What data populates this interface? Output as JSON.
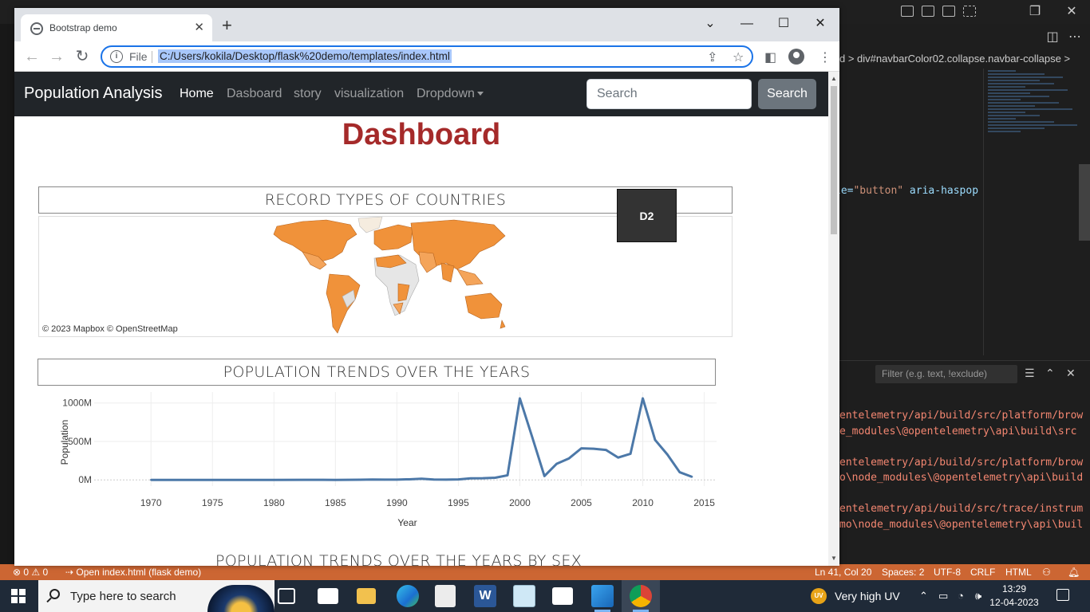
{
  "vscode": {
    "breadcrumb": "d > div#navbarColor02.collapse.navbar-collapse >",
    "code_line": {
      "pre": "le=",
      "value": "\"button\"",
      "post": " aria-haspop"
    },
    "filter_placeholder": "Filter (e.g. text, !exclude)",
    "terminal_lines": [
      "entelemetry/api/build/src/platform/brow",
      "e_modules\\@opentelemetry\\api\\build\\src",
      "",
      "entelemetry/api/build/src/platform/brow",
      "o\\node_modules\\@opentelemetry\\api\\build",
      "",
      "entelemetry/api/build/src/trace/instrum",
      "mo\\node_modules\\@opentelemetry\\api\\buil"
    ],
    "status": {
      "problems": "⊗ 0 ⚠ 0",
      "open_file": "Open index.html (flask demo)",
      "position": "Ln 41, Col 20",
      "spaces": "Spaces: 2",
      "encoding": "UTF-8",
      "eol": "CRLF",
      "language": "HTML"
    }
  },
  "browser": {
    "tab_title": "Bootstrap demo",
    "scheme": "File",
    "url": "C:/Users/kokila/Desktop/flask%20demo/templates/index.html"
  },
  "page": {
    "brand": "Population Analysis",
    "nav": [
      "Home",
      "Dasboard",
      "story",
      "visualization",
      "Dropdown"
    ],
    "search_placeholder": "Search",
    "search_button": "Search",
    "title": "Dashboard",
    "map_title": "RECORD TYPES OF COUNTRIES",
    "map_credit": "© 2023 Mapbox  © OpenStreetMap",
    "d2_label": "D2",
    "trend_title": "POPULATION TRENDS OVER THE YEARS",
    "sex_title": "POPULATION TRENDS OVER THE YEARS BY SEX"
  },
  "chart_data": {
    "type": "line",
    "title": "POPULATION TRENDS OVER THE YEARS",
    "xlabel": "Year",
    "ylabel": "Population",
    "xlim": [
      1967,
      2016
    ],
    "ylim": [
      -60,
      1080
    ],
    "xticks": [
      1970,
      1975,
      1980,
      1985,
      1990,
      1995,
      2000,
      2005,
      2010,
      2015
    ],
    "yticks": [
      {
        "value": 0,
        "label": "0M"
      },
      {
        "value": 500,
        "label": "500M"
      },
      {
        "value": 1000,
        "label": "1000M"
      }
    ],
    "color": "#4c78a8",
    "x": [
      1970,
      1975,
      1980,
      1984,
      1985,
      1986,
      1987,
      1988,
      1989,
      1990,
      1991,
      1992,
      1993,
      1994,
      1995,
      1996,
      1997,
      1998,
      1999,
      2000,
      2001,
      2002,
      2003,
      2004,
      2005,
      2006,
      2007,
      2008,
      2009,
      2010,
      2011,
      2012,
      2013,
      2014
    ],
    "y": [
      0,
      0,
      0,
      1,
      0,
      1,
      2,
      5,
      3,
      4,
      8,
      15,
      5,
      3,
      6,
      20,
      22,
      28,
      60,
      1060,
      560,
      50,
      210,
      280,
      410,
      405,
      390,
      290,
      340,
      1060,
      520,
      330,
      100,
      40
    ]
  },
  "taskbar": {
    "search_text": "Type here to search",
    "weather_badge": "UV",
    "weather": "Very high UV",
    "time": "13:29",
    "date": "12-04-2023"
  }
}
